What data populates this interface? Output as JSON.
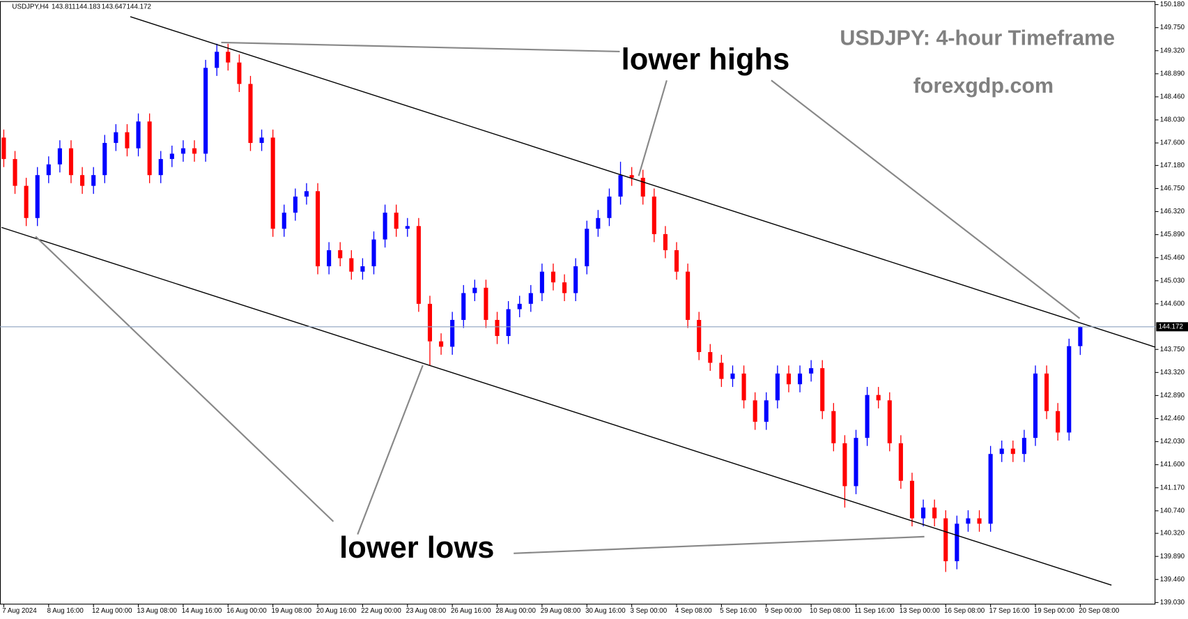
{
  "chart_data": {
    "type": "candlestick",
    "symbol": "USDJPY,H4",
    "title": "USDJPY: 4-hour Timeframe",
    "subtitle": "forexgdp.com",
    "annotations": [
      "lower highs",
      "lower lows"
    ],
    "up_color": "#0000ff",
    "down_color": "#ff0000",
    "categories": [
      "7 Aug 2024",
      null,
      null,
      null,
      "8 Aug 16:00",
      null,
      null,
      null,
      "12 Aug 00:00",
      null,
      null,
      null,
      "13 Aug 08:00",
      null,
      null,
      null,
      "14 Aug 16:00",
      null,
      null,
      null,
      "16 Aug 00:00",
      null,
      null,
      null,
      "19 Aug 08:00",
      null,
      null,
      null,
      "20 Aug 16:00",
      null,
      null,
      null,
      "22 Aug 00:00",
      null,
      null,
      null,
      "23 Aug 08:00",
      null,
      null,
      null,
      "26 Aug 16:00",
      null,
      null,
      null,
      "28 Aug 00:00",
      null,
      null,
      null,
      "29 Aug 08:00",
      null,
      null,
      null,
      "30 Aug 16:00",
      null,
      null,
      null,
      "3 Sep 00:00",
      null,
      null,
      null,
      "4 Sep 08:00",
      null,
      null,
      null,
      "5 Sep 16:00",
      null,
      null,
      null,
      "9 Sep 00:00",
      null,
      null,
      null,
      "10 Sep 08:00",
      null,
      null,
      null,
      "11 Sep 16:00",
      null,
      null,
      null,
      "13 Sep 00:00",
      null,
      null,
      null,
      "16 Sep 08:00",
      null,
      null,
      null,
      "17 Sep 16:00",
      null,
      null,
      null,
      "19 Sep 00:00",
      null,
      null,
      null,
      "20 Sep 08:00"
    ],
    "open": [
      147.7,
      147.3,
      146.8,
      146.2,
      147.0,
      147.2,
      147.5,
      147.0,
      146.8,
      147.0,
      147.6,
      147.8,
      147.5,
      148.0,
      147.0,
      147.3,
      147.4,
      147.5,
      147.4,
      149.0,
      149.3,
      149.1,
      148.7,
      147.6,
      147.7,
      146.0,
      146.3,
      146.6,
      146.7,
      145.3,
      145.6,
      145.45,
      145.2,
      145.3,
      145.8,
      146.3,
      146.0,
      146.05,
      144.6,
      143.9,
      143.8,
      144.3,
      144.8,
      144.9,
      144.3,
      144.0,
      144.5,
      144.6,
      144.8,
      145.2,
      145.0,
      144.8,
      145.3,
      146.0,
      146.2,
      146.6,
      147.0,
      146.95,
      146.6,
      145.9,
      145.6,
      145.2,
      144.3,
      143.7,
      143.5,
      143.2,
      143.3,
      142.8,
      142.4,
      142.8,
      143.3,
      143.1,
      143.3,
      143.4,
      142.6,
      142.0,
      141.2,
      142.1,
      142.9,
      142.8,
      142.0,
      141.3,
      140.6,
      140.8,
      140.6,
      139.8,
      140.5,
      140.6,
      140.5,
      141.8,
      141.9,
      141.8,
      142.1,
      143.3,
      142.6,
      142.2,
      143.811
    ],
    "high": [
      147.85,
      147.45,
      146.95,
      147.15,
      147.35,
      147.65,
      147.65,
      147.15,
      147.15,
      147.75,
      147.95,
      147.95,
      148.15,
      148.15,
      147.45,
      147.55,
      147.65,
      147.65,
      149.15,
      149.45,
      149.45,
      149.25,
      148.85,
      147.85,
      147.85,
      146.45,
      146.75,
      146.85,
      146.85,
      145.75,
      145.75,
      145.6,
      145.45,
      145.95,
      146.45,
      146.45,
      146.2,
      146.2,
      144.75,
      144.05,
      144.45,
      144.95,
      145.05,
      145.05,
      144.45,
      144.65,
      144.75,
      144.95,
      145.35,
      145.35,
      145.15,
      145.45,
      146.15,
      146.35,
      146.75,
      147.25,
      147.15,
      147.1,
      146.75,
      146.05,
      145.75,
      145.35,
      144.45,
      143.85,
      143.65,
      143.45,
      143.45,
      142.95,
      142.95,
      143.45,
      143.45,
      143.45,
      143.55,
      143.55,
      142.75,
      142.15,
      142.25,
      143.05,
      143.05,
      142.95,
      142.15,
      141.45,
      140.95,
      140.95,
      140.75,
      140.65,
      140.75,
      140.75,
      141.95,
      142.05,
      142.05,
      142.25,
      143.45,
      143.45,
      142.75,
      143.95,
      144.183
    ],
    "low": [
      147.15,
      146.65,
      146.05,
      146.05,
      146.85,
      147.05,
      146.85,
      146.65,
      146.65,
      146.85,
      147.45,
      147.35,
      147.35,
      146.85,
      146.85,
      147.15,
      147.25,
      147.25,
      147.25,
      148.85,
      148.95,
      148.55,
      147.45,
      147.45,
      145.85,
      145.85,
      146.15,
      146.45,
      145.15,
      145.15,
      145.3,
      145.05,
      145.05,
      145.15,
      145.65,
      145.85,
      145.85,
      144.45,
      143.45,
      143.65,
      143.65,
      144.15,
      144.65,
      144.15,
      143.85,
      143.85,
      144.35,
      144.45,
      144.65,
      144.85,
      144.65,
      144.65,
      145.15,
      145.85,
      146.05,
      146.45,
      146.8,
      146.45,
      145.75,
      145.45,
      145.05,
      144.15,
      143.55,
      143.35,
      143.05,
      143.05,
      142.65,
      142.25,
      142.25,
      142.65,
      142.95,
      142.95,
      143.15,
      142.45,
      141.85,
      140.8,
      141.05,
      141.95,
      142.65,
      141.85,
      141.15,
      140.45,
      140.45,
      140.45,
      139.6,
      139.65,
      140.35,
      140.35,
      140.35,
      141.65,
      141.65,
      141.65,
      141.95,
      142.45,
      142.05,
      142.05,
      143.647
    ],
    "close": [
      147.3,
      146.8,
      146.2,
      147.0,
      147.2,
      147.5,
      147.0,
      146.8,
      147.0,
      147.6,
      147.8,
      147.5,
      148.0,
      147.0,
      147.3,
      147.4,
      147.5,
      147.4,
      149.0,
      149.3,
      149.1,
      148.7,
      147.6,
      147.7,
      146.0,
      146.3,
      146.6,
      146.7,
      145.3,
      145.6,
      145.45,
      145.2,
      145.3,
      145.8,
      146.3,
      146.0,
      146.05,
      144.6,
      143.9,
      143.8,
      144.3,
      144.8,
      144.9,
      144.3,
      144.0,
      144.5,
      144.6,
      144.8,
      145.2,
      145.0,
      144.8,
      145.3,
      146.0,
      146.2,
      146.6,
      147.0,
      146.95,
      146.6,
      145.9,
      145.6,
      145.2,
      144.3,
      143.7,
      143.5,
      143.2,
      143.3,
      142.8,
      142.4,
      142.8,
      143.3,
      143.1,
      143.3,
      143.4,
      142.6,
      142.0,
      141.2,
      142.1,
      142.9,
      142.8,
      142.0,
      141.3,
      140.6,
      140.8,
      140.6,
      139.8,
      140.5,
      140.6,
      140.5,
      141.8,
      141.9,
      141.8,
      142.1,
      143.3,
      142.6,
      142.2,
      143.811,
      144.172
    ],
    "ylim": [
      139.0,
      150.22
    ],
    "yticks": [
      {
        "value": 150.18,
        "label": "150.180"
      },
      {
        "value": 149.75,
        "label": "149.750"
      },
      {
        "value": 149.32,
        "label": "149.320"
      },
      {
        "value": 148.89,
        "label": "148.890"
      },
      {
        "value": 148.46,
        "label": "148.460"
      },
      {
        "value": 148.03,
        "label": "148.030"
      },
      {
        "value": 147.6,
        "label": "147.600"
      },
      {
        "value": 147.18,
        "label": "147.180"
      },
      {
        "value": 146.75,
        "label": "146.750"
      },
      {
        "value": 146.32,
        "label": "146.320"
      },
      {
        "value": 145.89,
        "label": "145.890"
      },
      {
        "value": 145.46,
        "label": "145.460"
      },
      {
        "value": 145.03,
        "label": "145.030"
      },
      {
        "value": 144.6,
        "label": "144.600"
      },
      {
        "value": 143.75,
        "label": "143.750"
      },
      {
        "value": 143.32,
        "label": "143.320"
      },
      {
        "value": 142.89,
        "label": "142.890"
      },
      {
        "value": 142.46,
        "label": "142.460"
      },
      {
        "value": 142.03,
        "label": "142.030"
      },
      {
        "value": 141.6,
        "label": "141.600"
      },
      {
        "value": 141.17,
        "label": "141.170"
      },
      {
        "value": 140.74,
        "label": "140.740"
      },
      {
        "value": 140.32,
        "label": "140.320"
      },
      {
        "value": 139.89,
        "label": "139.890"
      },
      {
        "value": 139.46,
        "label": "139.460"
      },
      {
        "value": 139.03,
        "label": "139.030"
      }
    ]
  }
}
